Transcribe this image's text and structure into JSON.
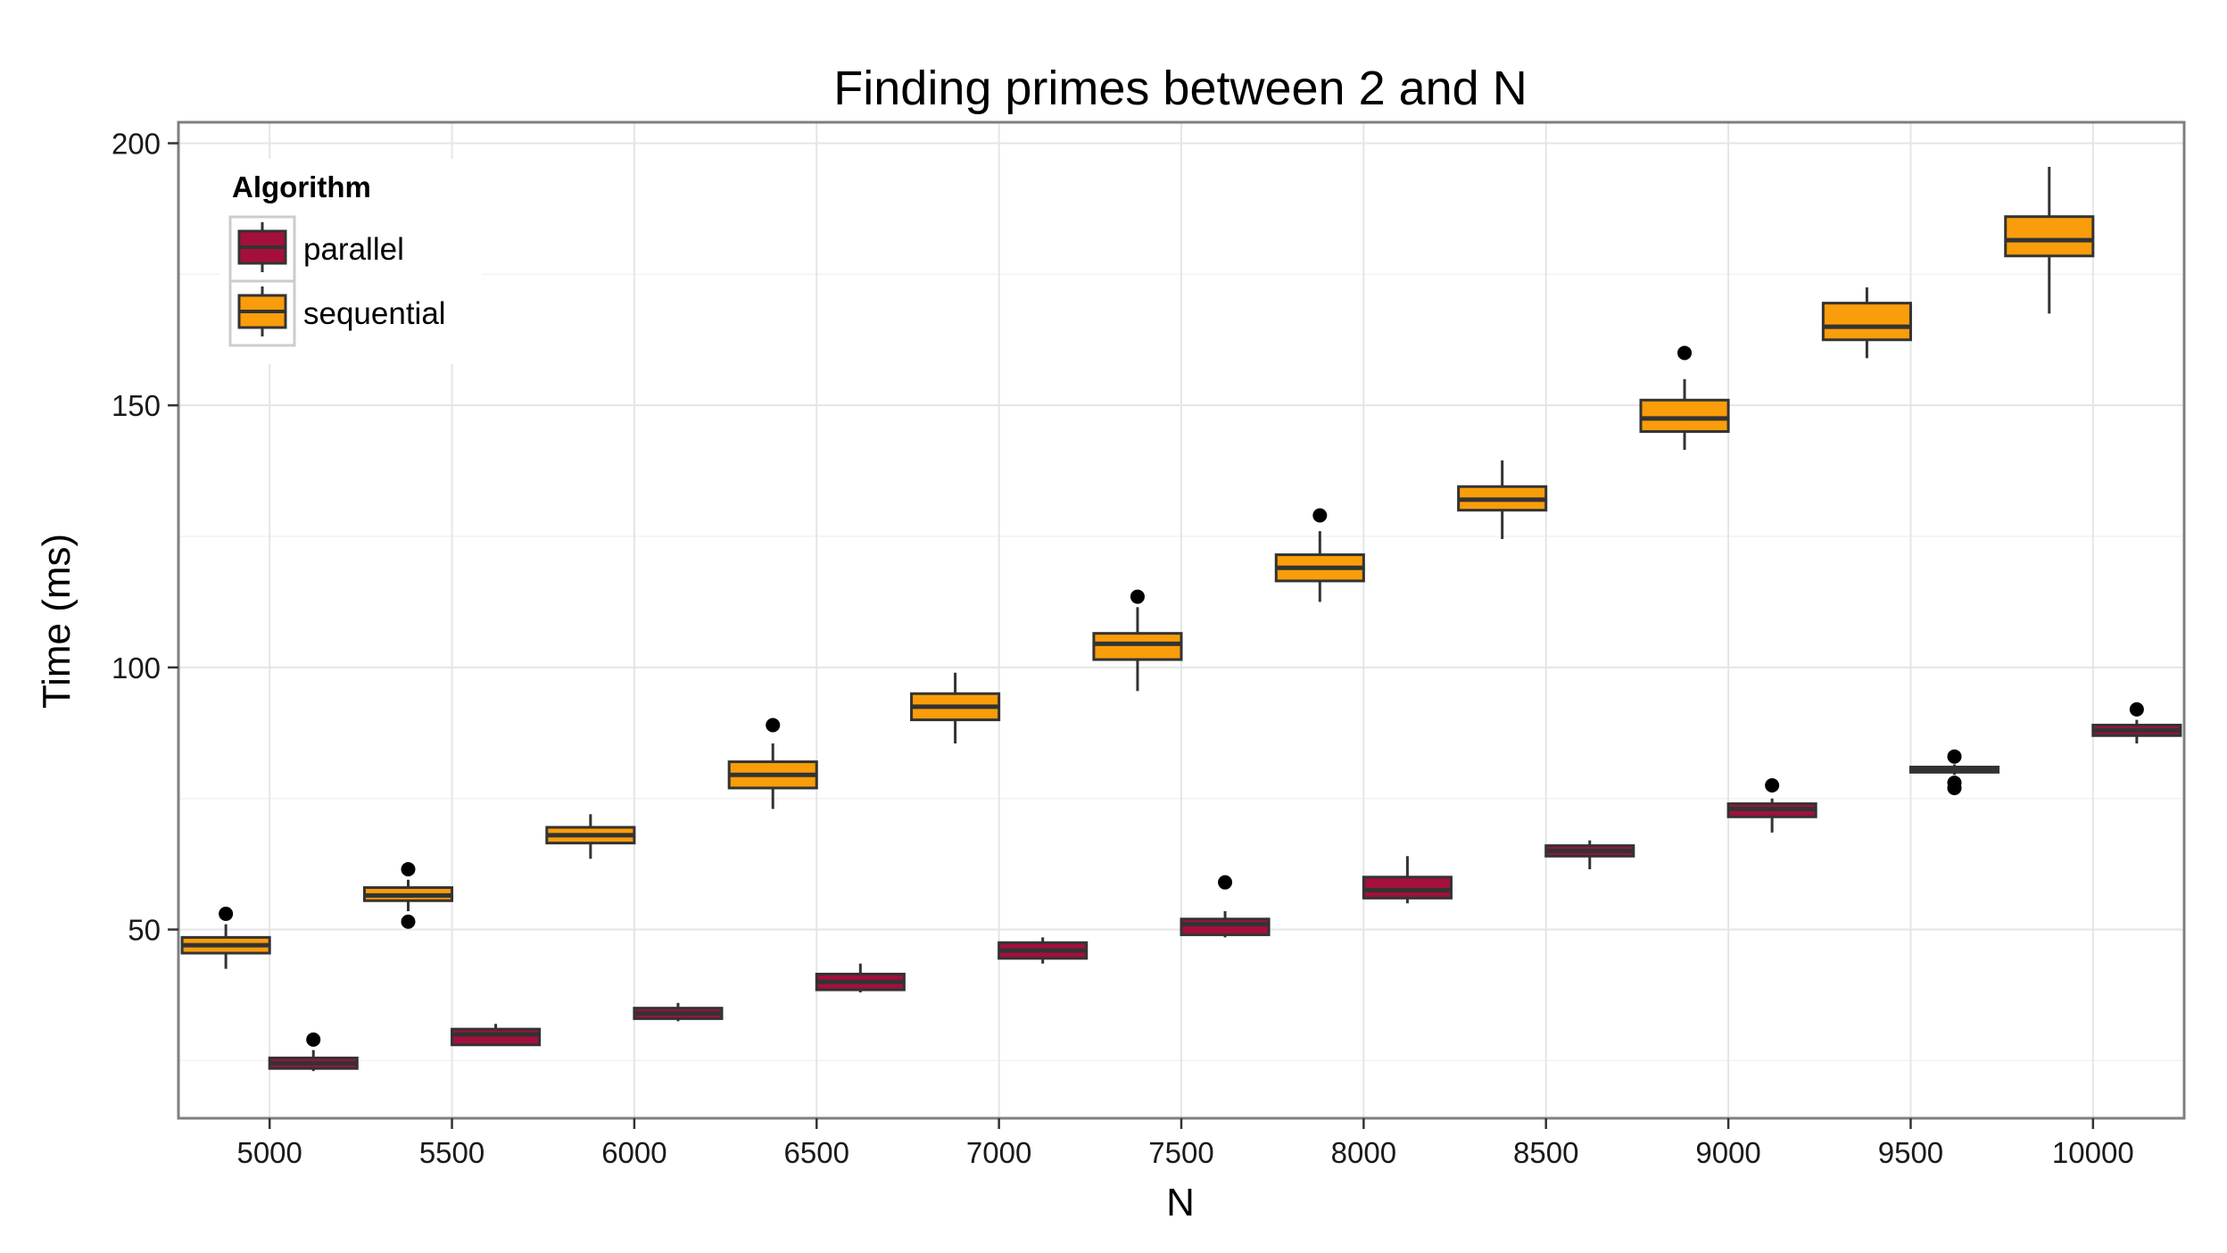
{
  "chart_data": {
    "type": "boxplot",
    "title": "Finding primes between 2 and N",
    "xlabel": "N",
    "ylabel": "Time (ms)",
    "categories": [
      "5000",
      "5500",
      "6000",
      "6500",
      "7000",
      "7500",
      "8000",
      "8500",
      "9000",
      "9500",
      "10000"
    ],
    "yticks": [
      50,
      100,
      150,
      200
    ],
    "ylim": [
      14,
      204
    ],
    "grid": true,
    "legend": {
      "title": "Algorithm",
      "placement": "top-left",
      "entries": [
        {
          "label": "parallel",
          "color": "#a50f3c"
        },
        {
          "label": "sequential",
          "color": "#f99d0a"
        }
      ]
    },
    "series": [
      {
        "name": "parallel",
        "color": "#a50f3c",
        "boxes": [
          {
            "x": "5000",
            "whisker_low": 23,
            "q1": 23.5,
            "median": 24.5,
            "q3": 25.5,
            "whisker_high": 27,
            "outliers": [
              29
            ]
          },
          {
            "x": "5500",
            "whisker_low": 28,
            "q1": 28,
            "median": 30,
            "q3": 31,
            "whisker_high": 32,
            "outliers": []
          },
          {
            "x": "6000",
            "whisker_low": 32.5,
            "q1": 33,
            "median": 34,
            "q3": 35,
            "whisker_high": 36,
            "outliers": []
          },
          {
            "x": "6500",
            "whisker_low": 38,
            "q1": 38.5,
            "median": 40,
            "q3": 41.5,
            "whisker_high": 43.5,
            "outliers": []
          },
          {
            "x": "7000",
            "whisker_low": 43.5,
            "q1": 44.5,
            "median": 46,
            "q3": 47.5,
            "whisker_high": 48.5,
            "outliers": []
          },
          {
            "x": "7500",
            "whisker_low": 48.5,
            "q1": 49,
            "median": 51,
            "q3": 52,
            "whisker_high": 53.5,
            "outliers": [
              59
            ]
          },
          {
            "x": "8000",
            "whisker_low": 55,
            "q1": 56,
            "median": 57.5,
            "q3": 60,
            "whisker_high": 64,
            "outliers": []
          },
          {
            "x": "8500",
            "whisker_low": 61.5,
            "q1": 64,
            "median": 65,
            "q3": 66,
            "whisker_high": 67,
            "outliers": []
          },
          {
            "x": "9000",
            "whisker_low": 68.5,
            "q1": 71.5,
            "median": 73,
            "q3": 74,
            "whisker_high": 75,
            "outliers": [
              77.5
            ]
          },
          {
            "x": "9500",
            "whisker_low": 79.5,
            "q1": 80,
            "median": 80.5,
            "q3": 81,
            "whisker_high": 81.5,
            "outliers": [
              83,
              78,
              77
            ]
          },
          {
            "x": "10000",
            "whisker_low": 85.5,
            "q1": 87,
            "median": 88,
            "q3": 89,
            "whisker_high": 90,
            "outliers": [
              92
            ]
          }
        ]
      },
      {
        "name": "sequential",
        "color": "#f99d0a",
        "boxes": [
          {
            "x": "5000",
            "whisker_low": 42.5,
            "q1": 45.5,
            "median": 47,
            "q3": 48.5,
            "whisker_high": 51,
            "outliers": [
              53
            ]
          },
          {
            "x": "5500",
            "whisker_low": 53.5,
            "q1": 55.5,
            "median": 56.5,
            "q3": 58,
            "whisker_high": 59.5,
            "outliers": [
              61.5,
              51.5
            ]
          },
          {
            "x": "6000",
            "whisker_low": 63.5,
            "q1": 66.5,
            "median": 68,
            "q3": 69.5,
            "whisker_high": 72,
            "outliers": []
          },
          {
            "x": "6500",
            "whisker_low": 73,
            "q1": 77,
            "median": 79.5,
            "q3": 82,
            "whisker_high": 85.5,
            "outliers": [
              89
            ]
          },
          {
            "x": "7000",
            "whisker_low": 85.5,
            "q1": 90,
            "median": 92.5,
            "q3": 95,
            "whisker_high": 99,
            "outliers": []
          },
          {
            "x": "7500",
            "whisker_low": 95.5,
            "q1": 101.5,
            "median": 104.5,
            "q3": 106.5,
            "whisker_high": 111.5,
            "outliers": [
              113.5
            ]
          },
          {
            "x": "8000",
            "whisker_low": 112.5,
            "q1": 116.5,
            "median": 119,
            "q3": 121.5,
            "whisker_high": 126,
            "outliers": [
              129
            ]
          },
          {
            "x": "8500",
            "whisker_low": 124.5,
            "q1": 130,
            "median": 132,
            "q3": 134.5,
            "whisker_high": 139.5,
            "outliers": []
          },
          {
            "x": "9000",
            "whisker_low": 141.5,
            "q1": 145,
            "median": 147.5,
            "q3": 151,
            "whisker_high": 155,
            "outliers": [
              160
            ]
          },
          {
            "x": "9500",
            "whisker_low": 159,
            "q1": 162.5,
            "median": 165,
            "q3": 169.5,
            "whisker_high": 172.5,
            "outliers": []
          },
          {
            "x": "10000",
            "whisker_low": 167.5,
            "q1": 178.5,
            "median": 181.5,
            "q3": 186,
            "whisker_high": 195.5,
            "outliers": []
          }
        ]
      }
    ]
  }
}
